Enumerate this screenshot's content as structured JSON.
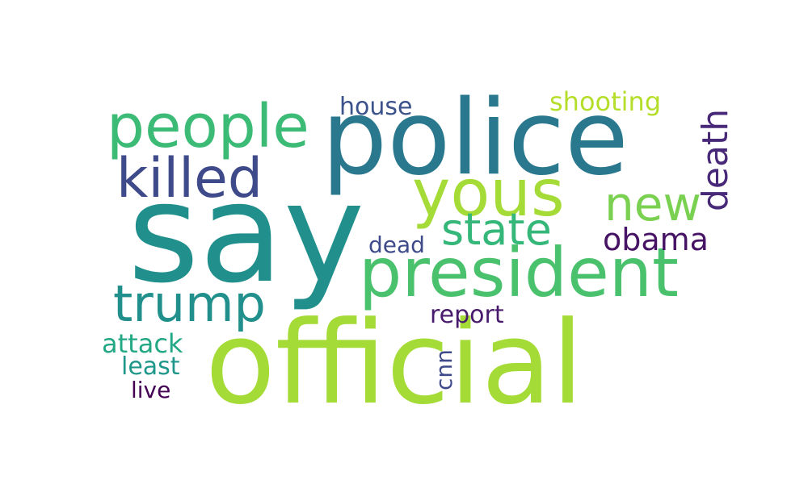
{
  "words": {
    "say": {
      "text": "say",
      "color": "#21908d"
    },
    "official": {
      "text": "official",
      "color": "#a5db36"
    },
    "police": {
      "text": "police",
      "color": "#2a788e"
    },
    "president": {
      "text": "president",
      "color": "#4ac16d"
    },
    "yous": {
      "text": "yous",
      "color": "#a5db36"
    },
    "people": {
      "text": "people",
      "color": "#3bbb75"
    },
    "killed": {
      "text": "killed",
      "color": "#3e4a89"
    },
    "trump": {
      "text": "trump",
      "color": "#21908d"
    },
    "new": {
      "text": "new",
      "color": "#7ad151"
    },
    "state": {
      "text": "state",
      "color": "#35b779"
    },
    "death": {
      "text": "death",
      "color": "#482878"
    },
    "obama": {
      "text": "obama",
      "color": "#471365"
    },
    "shooting": {
      "text": "shooting",
      "color": "#b5de2b"
    },
    "house": {
      "text": "house",
      "color": "#3b528b"
    },
    "dead": {
      "text": "dead",
      "color": "#3e4a89"
    },
    "report": {
      "text": "report",
      "color": "#481a6c"
    },
    "attack": {
      "text": "attack",
      "color": "#22a884"
    },
    "least": {
      "text": "least",
      "color": "#1f988b"
    },
    "live": {
      "text": "live",
      "color": "#440154"
    },
    "cnn": {
      "text": "cnn",
      "color": "#3e4a89"
    }
  }
}
